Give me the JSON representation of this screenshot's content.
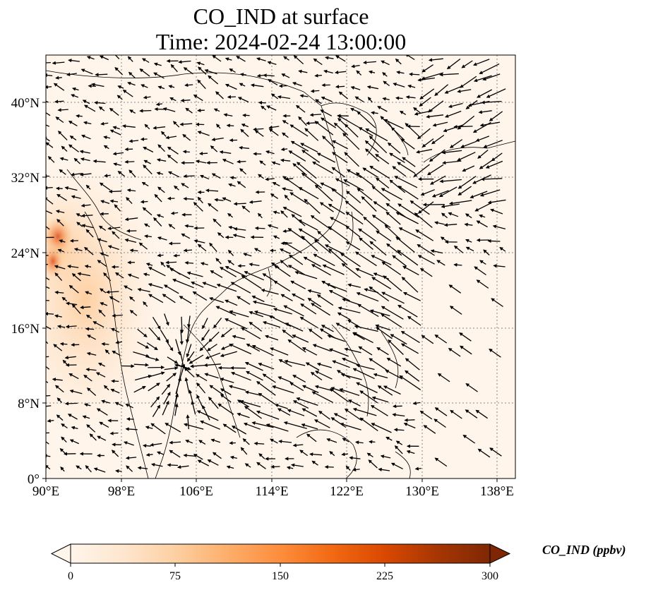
{
  "title": {
    "line1": "CO_IND at surface",
    "line2": "Time: 2024-02-24 13:00:00"
  },
  "map": {
    "lon_ticks": [
      "90°E",
      "98°E",
      "106°E",
      "114°E",
      "122°E",
      "130°E",
      "138°E"
    ],
    "lat_ticks": [
      "0°",
      "8°N",
      "16°N",
      "24°N",
      "32°N",
      "40°N"
    ],
    "lon_range": [
      90,
      140
    ],
    "lat_range": [
      0,
      45
    ],
    "gridlines": true
  },
  "colorbar": {
    "label": "CO_IND (ppbv)",
    "ticks": [
      "0",
      "75",
      "150",
      "225",
      "300"
    ],
    "range": [
      0,
      300
    ],
    "extend": "both",
    "colormap": [
      "#fff5eb",
      "#fee6ce",
      "#fdd0a2",
      "#fdae6b",
      "#fd8d3c",
      "#f16913",
      "#d94801",
      "#a63603",
      "#7f2704"
    ]
  },
  "colors": {
    "land_outline": "#000000",
    "background_field": "#fff5eb",
    "grid": "#888888",
    "wind_arrow": "#000000"
  }
}
